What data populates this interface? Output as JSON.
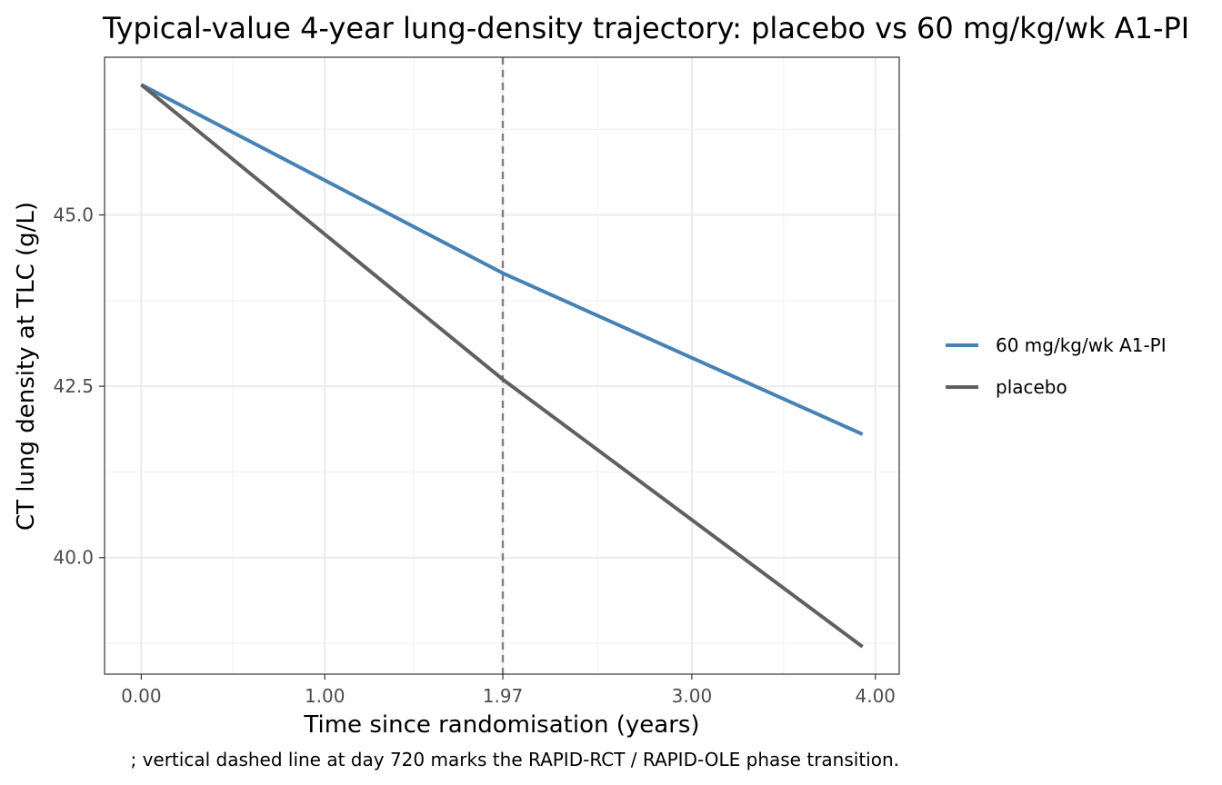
{
  "chart_data": {
    "type": "line",
    "title": "Typical-value 4-year lung-density trajectory: placebo vs 60 mg/kg/wk A1-PI",
    "xlabel": "Time since randomisation (years)",
    "ylabel": "CT lung density at TLC (g/L)",
    "caption": "; vertical dashed line at day 720 marks the RAPID-RCT / RAPID-OLE phase transition.",
    "xlim": [
      -0.2,
      4.13
    ],
    "ylim": [
      38.3,
      47.3
    ],
    "x_ticks": [
      {
        "value": 0,
        "label": "0.00"
      },
      {
        "value": 1,
        "label": "1.00"
      },
      {
        "value": 1.97,
        "label": "1.97"
      },
      {
        "value": 3,
        "label": "3.00"
      },
      {
        "value": 4,
        "label": "4.00"
      }
    ],
    "y_ticks": [
      {
        "value": 40,
        "label": "40.0"
      },
      {
        "value": 42.5,
        "label": "42.5"
      },
      {
        "value": 45,
        "label": "45.0"
      }
    ],
    "vline": {
      "x": 1.97,
      "style": "dashed"
    },
    "grid": true,
    "legend_position": "right",
    "series": [
      {
        "name": "60 mg/kg/wk A1-PI",
        "color": "#4682b4",
        "x": [
          0,
          1.97,
          3.93
        ],
        "y": [
          46.9,
          44.15,
          41.8
        ]
      },
      {
        "name": "placebo",
        "color": "#606060",
        "x": [
          0,
          1.97,
          3.93
        ],
        "y": [
          46.9,
          42.6,
          38.7
        ]
      }
    ]
  }
}
